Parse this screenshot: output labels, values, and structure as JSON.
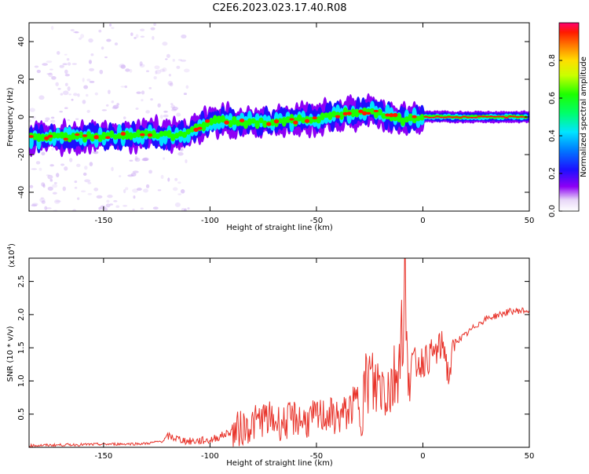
{
  "title": "C2E6.2023.023.17.40.R08",
  "colors": {
    "trace": "#e8342b",
    "axis": "#000000",
    "background": "#ffffff"
  },
  "chart_data": [
    {
      "type": "heatmap",
      "xlabel": "Height of straight line (km)",
      "ylabel": "Frequency (Hz)",
      "xlim": [
        -185,
        50
      ],
      "ylim": [
        -50,
        50
      ],
      "x_ticks": [
        "-150",
        "-100",
        "-50",
        "0",
        "50"
      ],
      "y_ticks": [
        "40",
        "20",
        "0",
        "-20",
        "-40"
      ],
      "colorbar": {
        "label": "Normalized spectral amplitude",
        "range": [
          0,
          1
        ],
        "ticks": [
          "0.0",
          "0.2",
          "0.4",
          "0.6",
          "0.8"
        ]
      },
      "ridge": {
        "x": [
          -185,
          -160,
          -130,
          -112,
          -100,
          -80,
          -60,
          -40,
          -25,
          -15,
          -10,
          -5,
          0,
          10,
          50
        ],
        "y": [
          -11,
          -10.5,
          -9.5,
          -10,
          -2,
          -3,
          -2,
          1,
          3,
          1,
          -2,
          -1,
          0,
          0,
          0
        ]
      }
    },
    {
      "type": "line",
      "xlabel": "Height of straight line (km)",
      "ylabel": "SNR (10 * v/v)",
      "y_multiplier": "(x10",
      "y_multiplier_exp": "4",
      "y_multiplier_close": ")",
      "xlim": [
        -185,
        50
      ],
      "ylim": [
        0,
        2.85
      ],
      "x_ticks": [
        "-150",
        "-100",
        "-50",
        "0",
        "50"
      ],
      "y_ticks": [
        "0.5",
        "1.0",
        "1.5",
        "2.0",
        "2.5"
      ],
      "series": [
        {
          "x": [
            -185,
            -170,
            -150,
            -130,
            -122,
            -120,
            -110,
            -100,
            -95,
            -90,
            -88,
            -85,
            -80,
            -75,
            -70,
            -65,
            -60,
            -55,
            -50,
            -45,
            -40,
            -35,
            -30,
            -27,
            -25,
            -23,
            -20,
            -17,
            -15,
            -12,
            -10,
            -8,
            -5,
            0,
            5,
            10,
            12,
            15,
            20,
            25,
            30,
            35,
            40,
            45,
            50
          ],
          "y": [
            0.03,
            0.04,
            0.05,
            0.06,
            0.1,
            0.18,
            0.1,
            0.12,
            0.18,
            0.25,
            0.3,
            0.35,
            0.4,
            0.5,
            0.45,
            0.42,
            0.5,
            0.45,
            0.5,
            0.55,
            0.5,
            0.6,
            0.8,
            1.0,
            1.2,
            1.0,
            1.1,
            1.05,
            1.05,
            1.3,
            1.9,
            1.5,
            1.3,
            1.35,
            1.45,
            1.6,
            1.1,
            1.6,
            1.7,
            1.85,
            1.95,
            2.0,
            2.05,
            2.07,
            2.07
          ]
        }
      ]
    }
  ]
}
